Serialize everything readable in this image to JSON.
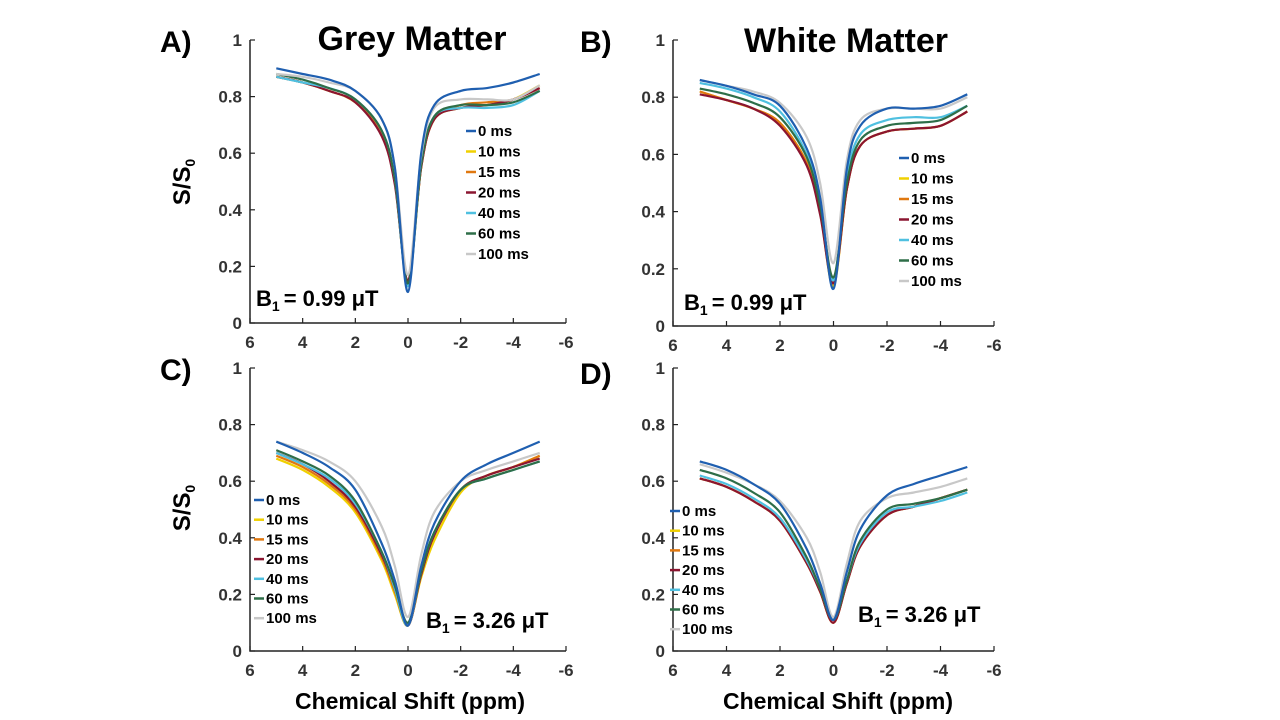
{
  "column_titles": [
    "Grey Matter",
    "White Matter"
  ],
  "ylabel_main": "S/S",
  "ylabel_sub": "0",
  "xlabel": "Chemical Shift (ppm)",
  "b1_prefix": "B",
  "b1_sub": "1",
  "legend": [
    "0 ms",
    "10 ms",
    "15 ms",
    "20 ms",
    "40 ms",
    "60 ms",
    "100 ms"
  ],
  "series_colors": [
    "#1f5fb0",
    "#f0d000",
    "#e07810",
    "#8b1530",
    "#4fc0e0",
    "#2e6e48",
    "#c8c8c8"
  ],
  "chart_data": [
    {
      "panel": "A)",
      "title": "Grey Matter",
      "b1": "= 0.99 μT",
      "type": "line",
      "xlabel": "",
      "ylabel": "S/S0",
      "xlim": [
        6,
        -6
      ],
      "ylim": [
        0,
        1
      ],
      "x_ticks": [
        6,
        4,
        2,
        0,
        -2,
        -4,
        -6
      ],
      "y_ticks": [
        0,
        0.2,
        0.4,
        0.6,
        0.8,
        1
      ],
      "x": [
        5,
        4,
        3,
        2,
        1,
        0.5,
        0,
        -0.5,
        -1,
        -2,
        -3,
        -4,
        -5
      ],
      "series": [
        {
          "name": "0 ms",
          "values": [
            0.9,
            0.88,
            0.86,
            0.82,
            0.72,
            0.55,
            0.11,
            0.6,
            0.77,
            0.82,
            0.83,
            0.85,
            0.88
          ]
        },
        {
          "name": "10 ms",
          "values": [
            0.87,
            0.85,
            0.82,
            0.78,
            0.67,
            0.5,
            0.14,
            0.55,
            0.72,
            0.76,
            0.77,
            0.79,
            0.84
          ]
        },
        {
          "name": "15 ms",
          "values": [
            0.87,
            0.85,
            0.82,
            0.78,
            0.67,
            0.5,
            0.14,
            0.55,
            0.72,
            0.77,
            0.78,
            0.79,
            0.83
          ]
        },
        {
          "name": "20 ms",
          "values": [
            0.87,
            0.85,
            0.82,
            0.78,
            0.66,
            0.49,
            0.15,
            0.55,
            0.72,
            0.76,
            0.77,
            0.79,
            0.83
          ]
        },
        {
          "name": "40 ms",
          "values": [
            0.87,
            0.85,
            0.83,
            0.79,
            0.68,
            0.51,
            0.13,
            0.56,
            0.73,
            0.76,
            0.76,
            0.77,
            0.82
          ]
        },
        {
          "name": "60 ms",
          "values": [
            0.88,
            0.86,
            0.83,
            0.79,
            0.68,
            0.51,
            0.14,
            0.56,
            0.73,
            0.77,
            0.77,
            0.78,
            0.82
          ]
        },
        {
          "name": "100 ms",
          "values": [
            0.88,
            0.87,
            0.85,
            0.82,
            0.72,
            0.55,
            0.17,
            0.59,
            0.76,
            0.79,
            0.79,
            0.79,
            0.84
          ]
        }
      ]
    },
    {
      "panel": "B)",
      "title": "White Matter",
      "b1": "= 0.99 μT",
      "type": "line",
      "xlabel": "",
      "ylabel": "",
      "xlim": [
        6,
        -6
      ],
      "ylim": [
        0,
        1
      ],
      "x_ticks": [
        6,
        4,
        2,
        0,
        -2,
        -4,
        -6
      ],
      "y_ticks": [
        0,
        0.2,
        0.4,
        0.6,
        0.8,
        1
      ],
      "x": [
        5,
        4,
        3,
        2,
        1,
        0.5,
        0,
        -0.5,
        -1,
        -2,
        -3,
        -4,
        -5
      ],
      "series": [
        {
          "name": "0 ms",
          "values": [
            0.86,
            0.84,
            0.81,
            0.77,
            0.62,
            0.45,
            0.13,
            0.55,
            0.7,
            0.76,
            0.76,
            0.77,
            0.81
          ]
        },
        {
          "name": "10 ms",
          "values": [
            0.82,
            0.79,
            0.76,
            0.71,
            0.57,
            0.4,
            0.14,
            0.48,
            0.63,
            0.68,
            0.69,
            0.7,
            0.75
          ]
        },
        {
          "name": "15 ms",
          "values": [
            0.82,
            0.79,
            0.76,
            0.71,
            0.57,
            0.4,
            0.15,
            0.48,
            0.63,
            0.68,
            0.69,
            0.7,
            0.75
          ]
        },
        {
          "name": "20 ms",
          "values": [
            0.81,
            0.79,
            0.76,
            0.7,
            0.56,
            0.39,
            0.15,
            0.48,
            0.63,
            0.68,
            0.69,
            0.7,
            0.75
          ]
        },
        {
          "name": "40 ms",
          "values": [
            0.85,
            0.83,
            0.8,
            0.75,
            0.6,
            0.43,
            0.16,
            0.52,
            0.67,
            0.72,
            0.73,
            0.73,
            0.77
          ]
        },
        {
          "name": "60 ms",
          "values": [
            0.83,
            0.81,
            0.78,
            0.73,
            0.59,
            0.42,
            0.17,
            0.5,
            0.65,
            0.7,
            0.71,
            0.72,
            0.77
          ]
        },
        {
          "name": "100 ms",
          "values": [
            0.86,
            0.84,
            0.82,
            0.78,
            0.66,
            0.5,
            0.22,
            0.58,
            0.72,
            0.76,
            0.76,
            0.76,
            0.8
          ]
        }
      ]
    },
    {
      "panel": "C)",
      "title": "",
      "b1": "= 3.26 μT",
      "type": "line",
      "xlabel": "Chemical Shift (ppm)",
      "ylabel": "S/S0",
      "xlim": [
        6,
        -6
      ],
      "ylim": [
        0,
        1
      ],
      "x_ticks": [
        6,
        4,
        2,
        0,
        -2,
        -4,
        -6
      ],
      "y_ticks": [
        0,
        0.2,
        0.4,
        0.6,
        0.8,
        1
      ],
      "x": [
        5,
        4,
        3,
        2,
        1,
        0.5,
        0,
        -0.5,
        -1,
        -2,
        -3,
        -4,
        -5
      ],
      "series": [
        {
          "name": "0 ms",
          "values": [
            0.74,
            0.7,
            0.65,
            0.57,
            0.38,
            0.25,
            0.09,
            0.3,
            0.45,
            0.6,
            0.66,
            0.7,
            0.74
          ]
        },
        {
          "name": "10 ms",
          "values": [
            0.68,
            0.64,
            0.58,
            0.49,
            0.32,
            0.2,
            0.09,
            0.26,
            0.39,
            0.56,
            0.62,
            0.65,
            0.69
          ]
        },
        {
          "name": "15 ms",
          "values": [
            0.69,
            0.65,
            0.59,
            0.5,
            0.33,
            0.21,
            0.09,
            0.27,
            0.41,
            0.57,
            0.62,
            0.65,
            0.69
          ]
        },
        {
          "name": "20 ms",
          "values": [
            0.7,
            0.66,
            0.6,
            0.51,
            0.34,
            0.22,
            0.09,
            0.27,
            0.41,
            0.57,
            0.62,
            0.65,
            0.68
          ]
        },
        {
          "name": "40 ms",
          "values": [
            0.7,
            0.66,
            0.61,
            0.52,
            0.35,
            0.22,
            0.09,
            0.28,
            0.42,
            0.57,
            0.61,
            0.64,
            0.67
          ]
        },
        {
          "name": "60 ms",
          "values": [
            0.71,
            0.67,
            0.62,
            0.53,
            0.35,
            0.23,
            0.1,
            0.28,
            0.42,
            0.57,
            0.61,
            0.64,
            0.67
          ]
        },
        {
          "name": "100 ms",
          "values": [
            0.74,
            0.71,
            0.67,
            0.6,
            0.44,
            0.3,
            0.12,
            0.34,
            0.49,
            0.6,
            0.64,
            0.67,
            0.7
          ]
        }
      ]
    },
    {
      "panel": "D)",
      "title": "",
      "b1": "= 3.26 μT",
      "type": "line",
      "xlabel": "Chemical Shift (ppm)",
      "ylabel": "",
      "xlim": [
        6,
        -6
      ],
      "ylim": [
        0,
        1
      ],
      "x_ticks": [
        6,
        4,
        2,
        0,
        -2,
        -4,
        -6
      ],
      "y_ticks": [
        0,
        0.2,
        0.4,
        0.6,
        0.8,
        1
      ],
      "x": [
        5,
        4,
        3,
        2,
        1,
        0.5,
        0,
        -0.5,
        -1,
        -2,
        -3,
        -4,
        -5
      ],
      "series": [
        {
          "name": "0 ms",
          "values": [
            0.67,
            0.64,
            0.59,
            0.52,
            0.36,
            0.24,
            0.11,
            0.28,
            0.43,
            0.55,
            0.59,
            0.62,
            0.65
          ]
        },
        {
          "name": "10 ms",
          "values": [
            0.61,
            0.58,
            0.53,
            0.46,
            0.31,
            0.21,
            0.1,
            0.24,
            0.37,
            0.48,
            0.51,
            0.54,
            0.57
          ]
        },
        {
          "name": "15 ms",
          "values": [
            0.61,
            0.58,
            0.53,
            0.46,
            0.31,
            0.21,
            0.1,
            0.24,
            0.37,
            0.48,
            0.51,
            0.54,
            0.57
          ]
        },
        {
          "name": "20 ms",
          "values": [
            0.61,
            0.58,
            0.53,
            0.46,
            0.31,
            0.21,
            0.1,
            0.24,
            0.37,
            0.48,
            0.51,
            0.54,
            0.57
          ]
        },
        {
          "name": "40 ms",
          "values": [
            0.62,
            0.59,
            0.54,
            0.47,
            0.32,
            0.22,
            0.11,
            0.25,
            0.38,
            0.49,
            0.51,
            0.53,
            0.56
          ]
        },
        {
          "name": "60 ms",
          "values": [
            0.64,
            0.61,
            0.56,
            0.49,
            0.33,
            0.22,
            0.11,
            0.25,
            0.39,
            0.5,
            0.52,
            0.54,
            0.57
          ]
        },
        {
          "name": "100 ms",
          "values": [
            0.66,
            0.63,
            0.59,
            0.53,
            0.4,
            0.28,
            0.12,
            0.31,
            0.46,
            0.54,
            0.56,
            0.58,
            0.61
          ]
        }
      ]
    }
  ]
}
